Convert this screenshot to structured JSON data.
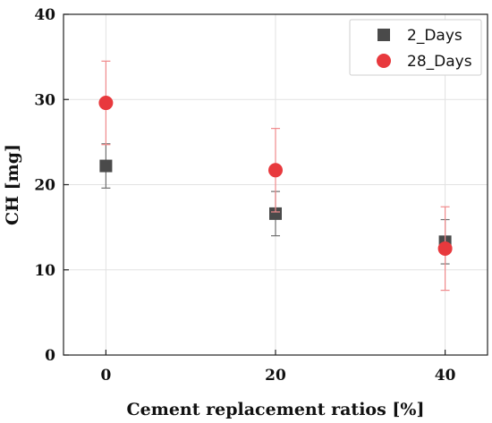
{
  "chart_data": {
    "type": "scatter",
    "title": "",
    "xlabel": "Cement replacement ratios [%]",
    "ylabel": "CH [mg]",
    "xlim": [
      -5,
      45
    ],
    "ylim": [
      0,
      40
    ],
    "x_ticks": [
      0,
      20,
      40
    ],
    "y_ticks": [
      0,
      10,
      20,
      30,
      40
    ],
    "grid": true,
    "legend_position": "top-right",
    "series": [
      {
        "name": "2_Days",
        "marker": "square",
        "color": "#4a4a4a",
        "error_color": "#707070",
        "x": [
          0,
          20,
          40
        ],
        "y": [
          22.2,
          16.6,
          13.3
        ],
        "err_low": [
          2.6,
          2.6,
          2.6
        ],
        "err_high": [
          2.6,
          2.6,
          2.6
        ]
      },
      {
        "name": "28_Days",
        "marker": "circle",
        "color": "#e8393d",
        "error_color": "#f08a8c",
        "x": [
          0,
          20,
          40
        ],
        "y": [
          29.6,
          21.7,
          12.5
        ],
        "err_low": [
          4.9,
          4.9,
          4.9
        ],
        "err_high": [
          4.9,
          4.9,
          4.9
        ]
      }
    ]
  }
}
